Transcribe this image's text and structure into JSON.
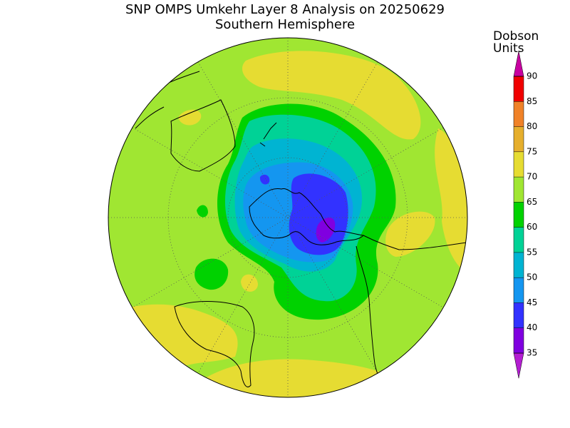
{
  "title": "SNP OMPS Umkehr Layer 8 Analysis on 20250629",
  "subtitle": "Southern Hemisphere",
  "colorbar": {
    "label": [
      "Dobson",
      "Units"
    ],
    "ticks": [
      35,
      40,
      45,
      50,
      55,
      60,
      65,
      70,
      75,
      80,
      85,
      90
    ],
    "colors": [
      "#b41ed2",
      "#8000e0",
      "#3232ff",
      "#1496f0",
      "#00b4d2",
      "#00d296",
      "#00d200",
      "#a0e632",
      "#e6dc32",
      "#e6af2d",
      "#f08228",
      "#f00000",
      "#c800a0"
    ]
  }
}
